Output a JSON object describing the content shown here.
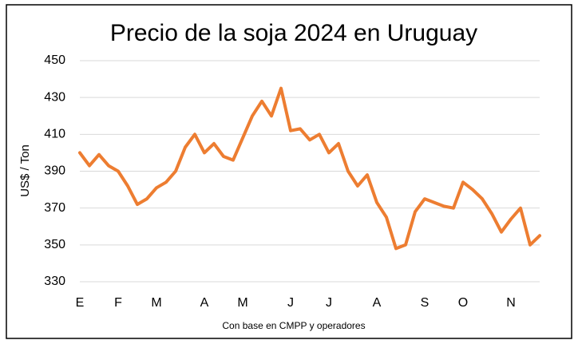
{
  "chart_data": {
    "type": "line",
    "title": "Precio de la soja 2024 en Uruguay",
    "y_label": "US$ / Ton",
    "note": "Con base en CMPP y operadores",
    "categories": [
      "E",
      null,
      null,
      null,
      "F",
      null,
      null,
      null,
      "M",
      null,
      null,
      null,
      null,
      "A",
      null,
      null,
      null,
      "M",
      null,
      null,
      null,
      null,
      "J",
      null,
      null,
      null,
      "J",
      null,
      null,
      null,
      null,
      "A",
      null,
      null,
      null,
      null,
      "S",
      null,
      null,
      null,
      "O",
      null,
      null,
      null,
      null,
      "N",
      null,
      null,
      null
    ],
    "series": [
      {
        "color": "#ed7d31",
        "values": [
          400,
          393,
          399,
          393,
          390,
          382,
          372,
          375,
          381,
          384,
          390,
          403,
          410,
          400,
          405,
          398,
          396,
          408,
          420,
          428,
          420,
          435,
          412,
          413,
          407,
          410,
          400,
          405,
          390,
          382,
          388,
          373,
          365,
          348,
          350,
          368,
          375,
          373,
          371,
          370,
          384,
          380,
          375,
          367,
          357,
          364,
          370,
          350,
          355
        ]
      }
    ],
    "ylim": [
      330,
      450
    ],
    "yticks": [
      330,
      350,
      370,
      390,
      410,
      430,
      450
    ],
    "grid": true
  }
}
